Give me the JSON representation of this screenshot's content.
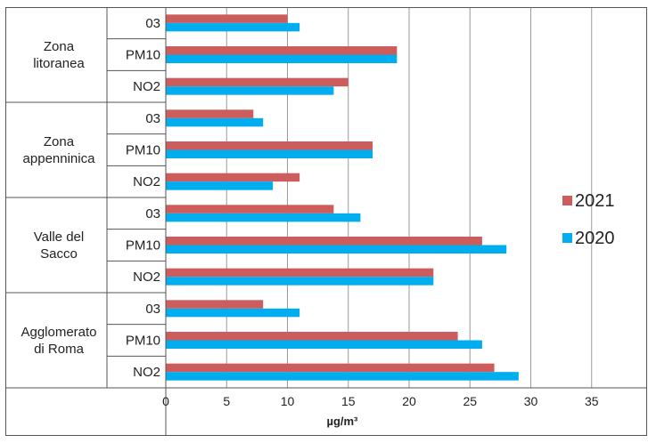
{
  "chart_data": {
    "type": "bar",
    "orientation": "horizontal",
    "xlabel": "µg/m³",
    "xlim": [
      0,
      40
    ],
    "xticks": [
      0,
      5,
      10,
      15,
      20,
      25,
      30,
      35
    ],
    "grid": true,
    "legend_position": "right",
    "groups": [
      {
        "name_lines": [
          "Zona",
          "litoranea"
        ],
        "categories": [
          "03",
          "PM10",
          "NO2"
        ]
      },
      {
        "name_lines": [
          "Zona",
          "appenninica"
        ],
        "categories": [
          "03",
          "PM10",
          "NO2"
        ]
      },
      {
        "name_lines": [
          "Valle del",
          "Sacco"
        ],
        "categories": [
          "03",
          "PM10",
          "NO2"
        ]
      },
      {
        "name_lines": [
          "Agglomerato",
          "di Roma"
        ],
        "categories": [
          "03",
          "PM10",
          "NO2"
        ]
      }
    ],
    "series": [
      {
        "name": "2021",
        "color": "#CD5C5C",
        "values": [
          [
            10,
            19,
            15
          ],
          [
            7.2,
            17,
            11
          ],
          [
            13.8,
            26,
            22
          ],
          [
            8,
            24,
            27
          ]
        ]
      },
      {
        "name": "2020",
        "color": "#00AEEF",
        "values": [
          [
            11,
            19,
            13.8
          ],
          [
            8,
            17,
            8.8
          ],
          [
            16,
            28,
            22
          ],
          [
            11,
            26,
            29
          ]
        ]
      }
    ],
    "legend_order": [
      "2021",
      "2020"
    ]
  }
}
